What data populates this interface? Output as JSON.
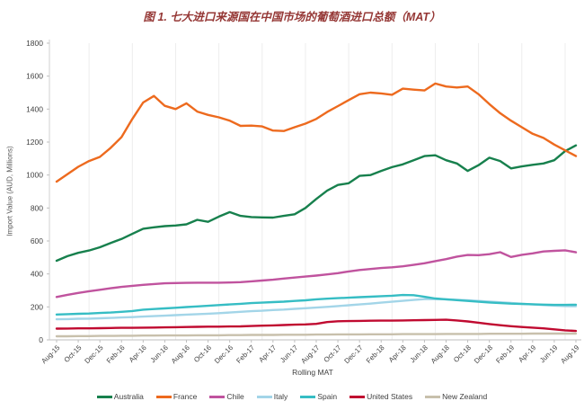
{
  "page": {
    "background": "#ffffff"
  },
  "chart_data": {
    "type": "line",
    "title": "图 1. 七大进口来源国在中国市场的葡萄酒进口总额（MAT）",
    "title_color": "#953735",
    "xlabel": "Rolling MAT",
    "ylabel": "Import Value (AUD, Millions)",
    "ylim": [
      0,
      1800
    ],
    "y_ticks": [
      0,
      200,
      400,
      600,
      800,
      1000,
      1200,
      1400,
      1600,
      1800
    ],
    "x_tick_labels": [
      "Aug-15",
      "Oct-15",
      "Dec-15",
      "Feb-16",
      "Apr-16",
      "Jun-16",
      "Aug-16",
      "Oct-16",
      "Dec-16",
      "Feb-17",
      "Apr-17",
      "Jun-17",
      "Aug-17",
      "Oct-17",
      "Dec-17",
      "Feb-18",
      "Apr-18",
      "Jun-18",
      "Aug-18",
      "Oct-18",
      "Dec-18",
      "Feb-19",
      "Apr-19",
      "Jun-19",
      "Aug-19"
    ],
    "points_per_label": 2,
    "legend_position": "bottom",
    "grid": "faint vertical gridlines",
    "series": [
      {
        "name": "Australia",
        "color": "#17804d",
        "values": [
          480,
          508,
          528,
          542,
          562,
          588,
          612,
          643,
          674,
          683,
          690,
          694,
          701,
          728,
          716,
          748,
          775,
          752,
          745,
          743,
          742,
          752,
          762,
          800,
          855,
          905,
          940,
          950,
          995,
          1000,
          1025,
          1048,
          1065,
          1090,
          1115,
          1120,
          1090,
          1070,
          1025,
          1060,
          1105,
          1085,
          1040,
          1052,
          1062,
          1070,
          1090,
          1145,
          1180
        ]
      },
      {
        "name": "France",
        "color": "#ed6a1e",
        "values": [
          960,
          1005,
          1050,
          1085,
          1110,
          1165,
          1230,
          1340,
          1440,
          1480,
          1420,
          1400,
          1435,
          1385,
          1365,
          1350,
          1330,
          1298,
          1300,
          1295,
          1270,
          1267,
          1290,
          1312,
          1340,
          1382,
          1418,
          1455,
          1490,
          1500,
          1495,
          1487,
          1524,
          1518,
          1513,
          1555,
          1537,
          1531,
          1537,
          1490,
          1430,
          1375,
          1330,
          1290,
          1250,
          1225,
          1185,
          1150,
          1115
        ]
      },
      {
        "name": "Chile",
        "color": "#c0539e",
        "values": [
          260,
          273,
          285,
          295,
          304,
          313,
          321,
          328,
          334,
          339,
          343,
          345,
          346,
          347,
          347,
          347,
          348,
          350,
          355,
          360,
          365,
          372,
          378,
          384,
          390,
          397,
          405,
          415,
          424,
          430,
          436,
          440,
          446,
          455,
          465,
          478,
          490,
          505,
          515,
          514,
          520,
          532,
          503,
          516,
          525,
          536,
          540,
          543,
          531
        ]
      },
      {
        "name": "Italy",
        "color": "#a3d5e8",
        "values": [
          125,
          126,
          128,
          129,
          131,
          133,
          136,
          138,
          141,
          144,
          147,
          150,
          153,
          156,
          159,
          162,
          166,
          170,
          174,
          177,
          181,
          184,
          188,
          192,
          196,
          200,
          205,
          210,
          215,
          220,
          226,
          231,
          237,
          242,
          247,
          248,
          246,
          243,
          240,
          236,
          232,
          228,
          224,
          219,
          215,
          211,
          208,
          205,
          204
        ]
      },
      {
        "name": "Spain",
        "color": "#36bdc4",
        "values": [
          154,
          156,
          158,
          160,
          163,
          166,
          170,
          175,
          183,
          187,
          191,
          195,
          199,
          203,
          207,
          211,
          215,
          219,
          223,
          226,
          229,
          232,
          236,
          240,
          246,
          250,
          253,
          256,
          259,
          262,
          265,
          268,
          272,
          271,
          261,
          251,
          246,
          241,
          236,
          231,
          227,
          223,
          220,
          218,
          216,
          214,
          212,
          212,
          213
        ]
      },
      {
        "name": "United States",
        "color": "#c00a30",
        "values": [
          68,
          69,
          70,
          70,
          71,
          72,
          73,
          73,
          74,
          75,
          76,
          77,
          78,
          79,
          80,
          80,
          81,
          82,
          84,
          86,
          88,
          90,
          92,
          94,
          97,
          108,
          113,
          114,
          115,
          116,
          117,
          117,
          118,
          119,
          120,
          121,
          122,
          118,
          112,
          104,
          96,
          89,
          83,
          78,
          74,
          70,
          64,
          58,
          54
        ]
      },
      {
        "name": "New Zealand",
        "color": "#c8c0ac",
        "values": [
          22,
          22,
          23,
          23,
          24,
          24,
          25,
          25,
          26,
          26,
          27,
          27,
          27,
          28,
          28,
          28,
          29,
          29,
          30,
          30,
          30,
          31,
          31,
          31,
          32,
          32,
          33,
          33,
          33,
          34,
          34,
          34,
          35,
          35,
          35,
          35,
          36,
          36,
          36,
          36,
          37,
          37,
          37,
          37,
          38,
          38,
          38,
          38,
          38
        ]
      }
    ]
  }
}
